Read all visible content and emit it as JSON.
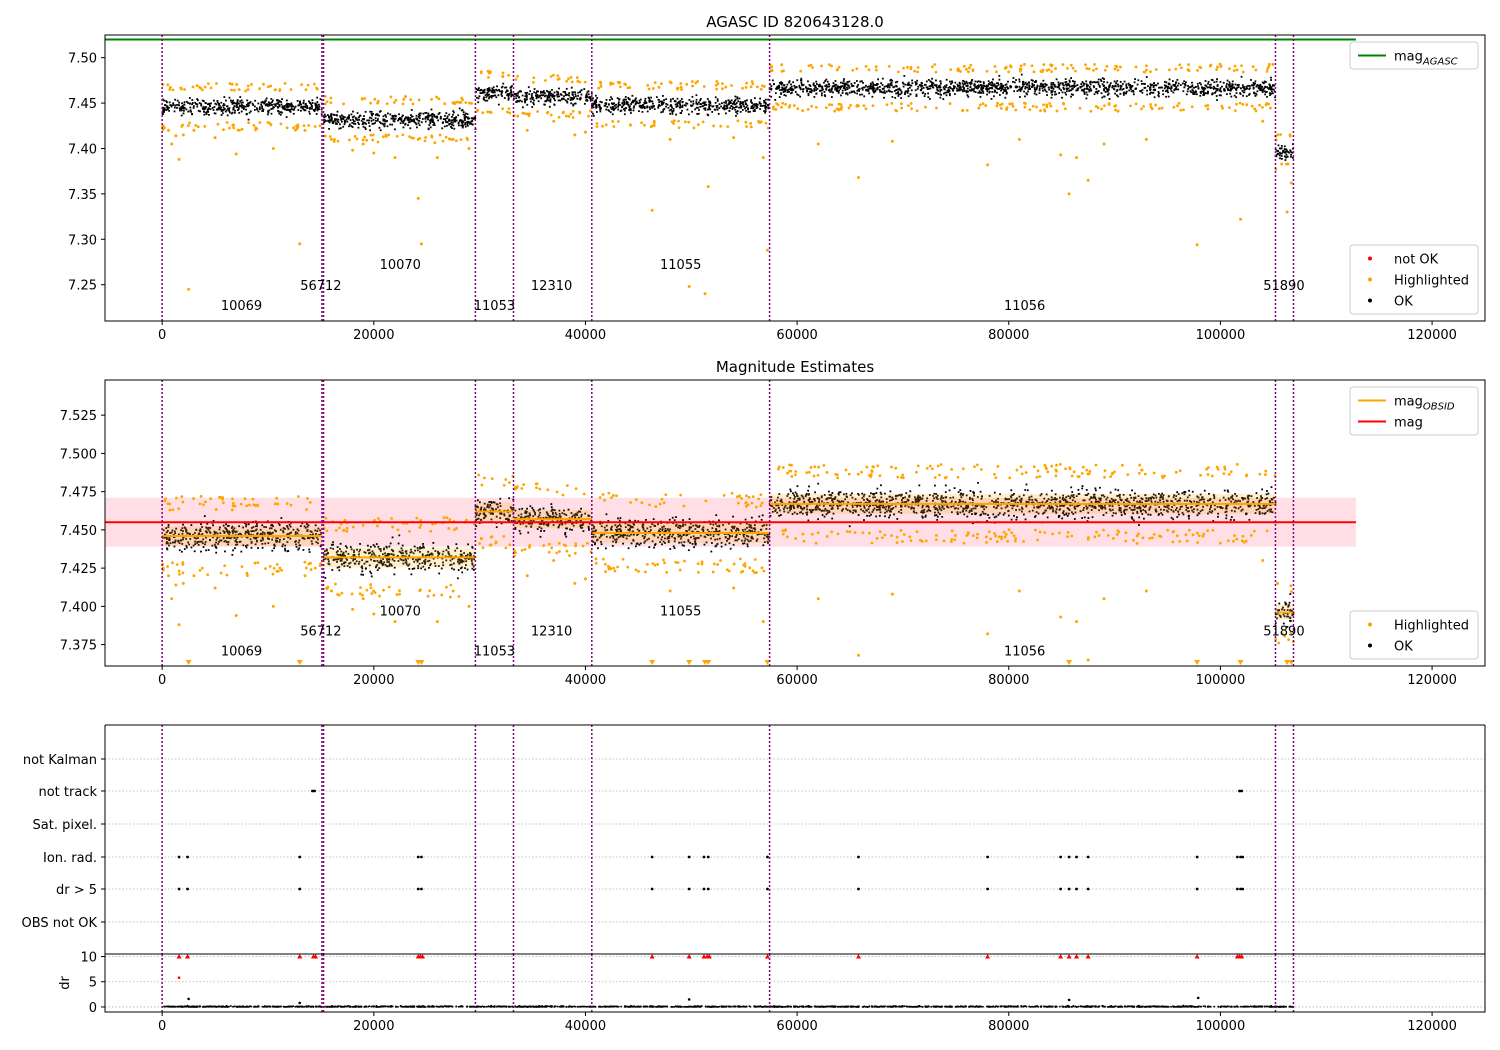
{
  "colors": {
    "ok": "#000000",
    "highlighted": "#ffa500",
    "not_ok": "#ff0000",
    "obs_boundary": "#800080",
    "mag_agasc": "#008000",
    "mag": "#ff0000",
    "mag_band": "#ffc0cb",
    "mag_obsid": "#ffa500",
    "grid": "#b0b0b0"
  },
  "chart_data": [
    {
      "id": "top",
      "type": "scatter",
      "title": "AGASC ID 820643128.0",
      "xlim": [
        -5400,
        125000
      ],
      "ylim": [
        7.21,
        7.525
      ],
      "xticks": [
        0,
        20000,
        40000,
        60000,
        80000,
        100000,
        120000
      ],
      "xtick_labels": [
        "0",
        "20000",
        "40000",
        "60000",
        "80000",
        "100000",
        "120000"
      ],
      "yticks": [
        7.25,
        7.3,
        7.35,
        7.4,
        7.45,
        7.5
      ],
      "ytick_labels": [
        "7.25",
        "7.30",
        "7.35",
        "7.40",
        "7.45",
        "7.50"
      ],
      "mag_agasc": 7.52,
      "mag_agasc_xrange": [
        -5400,
        112800
      ],
      "legends": [
        {
          "loc": "upper-right",
          "entries": [
            {
              "label": "mag",
              "subscript": "AGASC",
              "kind": "line",
              "color": "#008000"
            }
          ]
        },
        {
          "loc": "lower-right",
          "entries": [
            {
              "label": "not OK",
              "kind": "dot",
              "color": "#ff0000"
            },
            {
              "label": "Highlighted",
              "kind": "dot",
              "color": "#ffa500"
            },
            {
              "label": "OK",
              "kind": "dot",
              "color": "#000000"
            }
          ]
        }
      ],
      "obs_labels": [
        {
          "text": "10069",
          "x": 7500,
          "y": 7.222
        },
        {
          "text": "56712",
          "x": 15000,
          "y": 7.244
        },
        {
          "text": "10070",
          "x": 22500,
          "y": 7.267
        },
        {
          "text": "11053",
          "x": 31400,
          "y": 7.222
        },
        {
          "text": "12310",
          "x": 36800,
          "y": 7.244
        },
        {
          "text": "11055",
          "x": 49000,
          "y": 7.267
        },
        {
          "text": "11056",
          "x": 81500,
          "y": 7.222
        },
        {
          "text": "51890",
          "x": 106000,
          "y": 7.244
        }
      ]
    },
    {
      "id": "middle",
      "type": "scatter",
      "title": "Magnitude Estimates",
      "xlim": [
        -5400,
        125000
      ],
      "ylim": [
        7.361,
        7.548
      ],
      "xticks": [
        0,
        20000,
        40000,
        60000,
        80000,
        100000,
        120000
      ],
      "xtick_labels": [
        "0",
        "20000",
        "40000",
        "60000",
        "80000",
        "100000",
        "120000"
      ],
      "yticks": [
        7.375,
        7.4,
        7.425,
        7.45,
        7.475,
        7.5,
        7.525
      ],
      "ytick_labels": [
        "7.375",
        "7.400",
        "7.425",
        "7.450",
        "7.475",
        "7.500",
        "7.525"
      ],
      "mag": 7.455,
      "mag_band": [
        7.439,
        7.471
      ],
      "mag_xrange": [
        -5400,
        112800
      ],
      "legends": [
        {
          "loc": "upper-right",
          "entries": [
            {
              "label": "mag",
              "subscript": "OBSID",
              "kind": "line",
              "color": "#ffa500"
            },
            {
              "label": "mag",
              "kind": "line",
              "color": "#ff0000"
            }
          ]
        },
        {
          "loc": "lower-right",
          "entries": [
            {
              "label": "Highlighted",
              "kind": "dot",
              "color": "#ffa500"
            },
            {
              "label": "OK",
              "kind": "dot",
              "color": "#000000"
            }
          ]
        }
      ],
      "obs_labels": [
        {
          "text": "10069",
          "x": 7500,
          "y": 7.368
        },
        {
          "text": "56712",
          "x": 15000,
          "y": 7.381
        },
        {
          "text": "10070",
          "x": 22500,
          "y": 7.394
        },
        {
          "text": "11053",
          "x": 31400,
          "y": 7.368
        },
        {
          "text": "12310",
          "x": 36800,
          "y": 7.381
        },
        {
          "text": "11055",
          "x": 49000,
          "y": 7.394
        },
        {
          "text": "11056",
          "x": 81500,
          "y": 7.368
        },
        {
          "text": "51890",
          "x": 106000,
          "y": 7.381
        }
      ]
    },
    {
      "id": "flags",
      "type": "scatter",
      "xlim": [
        -5400,
        125000
      ],
      "categories": [
        "not Kalman",
        "not track",
        "Sat. pixel.",
        "Ion. rad.",
        "dr > 5",
        "OBS not OK"
      ],
      "flag_points": {
        "not track": [
          14200,
          14400,
          101800,
          102000
        ],
        "Ion. rad.": [
          1600,
          2400,
          13000,
          24200,
          24500,
          46300,
          49800,
          51200,
          51600,
          57200,
          65800,
          78000,
          84900,
          85700,
          86400,
          87500,
          97800,
          101600,
          101900,
          102100
        ],
        "dr > 5": [
          1600,
          2400,
          13000,
          24200,
          24500,
          46300,
          49800,
          51200,
          51600,
          57200,
          65800,
          78000,
          84900,
          85700,
          86400,
          87500,
          97800,
          101600,
          101900,
          102100
        ]
      }
    },
    {
      "id": "dr",
      "type": "scatter",
      "ylabel": "dr",
      "xlim": [
        -5400,
        125000
      ],
      "ylim": [
        -1,
        10.5
      ],
      "xticks": [
        0,
        20000,
        40000,
        60000,
        80000,
        100000,
        120000
      ],
      "xtick_labels": [
        "0",
        "20000",
        "40000",
        "60000",
        "80000",
        "100000",
        "120000"
      ],
      "yticks": [
        0,
        5,
        10
      ],
      "ytick_labels": [
        "0",
        "5",
        "10"
      ],
      "clipped_high_x": [
        1600,
        2400,
        13000,
        14300,
        14500,
        24200,
        24400,
        24600,
        46300,
        49800,
        51200,
        51500,
        51700,
        57200,
        65800,
        78000,
        84900,
        85700,
        86400,
        87500,
        97800,
        101600,
        101800,
        102000
      ],
      "mid_points": [
        {
          "x": 1600,
          "y": 5.8
        },
        {
          "x": 2500,
          "y": 1.6
        },
        {
          "x": 49800,
          "y": 1.5
        },
        {
          "x": 85700,
          "y": 1.4
        },
        {
          "x": 97900,
          "y": 1.8
        },
        {
          "x": 13000,
          "y": 0.8
        }
      ]
    }
  ],
  "observations": [
    {
      "id": "10069",
      "start": 0,
      "end": 15100,
      "mean": 7.446,
      "sigma": 0.0065
    },
    {
      "id": "56712",
      "start": 15100,
      "end": 15250,
      "mean": 7.446,
      "sigma": 0.0065
    },
    {
      "id": "10070",
      "start": 15250,
      "end": 29600,
      "mean": 7.432,
      "sigma": 0.0065
    },
    {
      "id": "11053",
      "start": 29600,
      "end": 33200,
      "mean": 7.462,
      "sigma": 0.006
    },
    {
      "id": "12310",
      "start": 33200,
      "end": 40600,
      "mean": 7.457,
      "sigma": 0.006
    },
    {
      "id": "11055",
      "start": 40600,
      "end": 57400,
      "mean": 7.448,
      "sigma": 0.0065
    },
    {
      "id": "11056",
      "start": 57400,
      "end": 105200,
      "mean": 7.467,
      "sigma": 0.0065
    },
    {
      "id": "51890",
      "start": 105200,
      "end": 106900,
      "mean": 7.396,
      "sigma": 0.005
    }
  ],
  "obs_boundaries": [
    0,
    15100,
    15250,
    29600,
    33200,
    40600,
    57400,
    105200,
    106900
  ],
  "highlighted_outliers": [
    {
      "x": 100,
      "y": 7.425
    },
    {
      "x": 600,
      "y": 7.42
    },
    {
      "x": 900,
      "y": 7.405
    },
    {
      "x": 1300,
      "y": 7.414
    },
    {
      "x": 1600,
      "y": 7.388
    },
    {
      "x": 2000,
      "y": 7.415
    },
    {
      "x": 2500,
      "y": 7.245
    },
    {
      "x": 3000,
      "y": 7.42
    },
    {
      "x": 5000,
      "y": 7.412
    },
    {
      "x": 7000,
      "y": 7.394
    },
    {
      "x": 10500,
      "y": 7.4
    },
    {
      "x": 13000,
      "y": 7.295
    },
    {
      "x": 13500,
      "y": 7.42
    },
    {
      "x": 16000,
      "y": 7.41
    },
    {
      "x": 18000,
      "y": 7.398
    },
    {
      "x": 19000,
      "y": 7.405
    },
    {
      "x": 20000,
      "y": 7.395
    },
    {
      "x": 22000,
      "y": 7.39
    },
    {
      "x": 24200,
      "y": 7.345
    },
    {
      "x": 24500,
      "y": 7.295
    },
    {
      "x": 26000,
      "y": 7.39
    },
    {
      "x": 27500,
      "y": 7.41
    },
    {
      "x": 29000,
      "y": 7.4
    },
    {
      "x": 31000,
      "y": 7.44
    },
    {
      "x": 34500,
      "y": 7.42
    },
    {
      "x": 37000,
      "y": 7.43
    },
    {
      "x": 39000,
      "y": 7.415
    },
    {
      "x": 40000,
      "y": 7.418
    },
    {
      "x": 46300,
      "y": 7.332
    },
    {
      "x": 48000,
      "y": 7.41
    },
    {
      "x": 49800,
      "y": 7.248
    },
    {
      "x": 51300,
      "y": 7.24
    },
    {
      "x": 51600,
      "y": 7.358
    },
    {
      "x": 54000,
      "y": 7.412
    },
    {
      "x": 56800,
      "y": 7.39
    },
    {
      "x": 57200,
      "y": 7.288
    },
    {
      "x": 62000,
      "y": 7.405
    },
    {
      "x": 65800,
      "y": 7.368
    },
    {
      "x": 69000,
      "y": 7.408
    },
    {
      "x": 78000,
      "y": 7.382
    },
    {
      "x": 81000,
      "y": 7.41
    },
    {
      "x": 84900,
      "y": 7.393
    },
    {
      "x": 85700,
      "y": 7.35
    },
    {
      "x": 86400,
      "y": 7.39
    },
    {
      "x": 87500,
      "y": 7.365
    },
    {
      "x": 89000,
      "y": 7.405
    },
    {
      "x": 93000,
      "y": 7.41
    },
    {
      "x": 97800,
      "y": 7.294
    },
    {
      "x": 101900,
      "y": 7.322
    },
    {
      "x": 104000,
      "y": 7.43
    },
    {
      "x": 106300,
      "y": 7.33
    },
    {
      "x": 106700,
      "y": 7.362
    },
    {
      "x": 105400,
      "y": 7.415
    }
  ]
}
